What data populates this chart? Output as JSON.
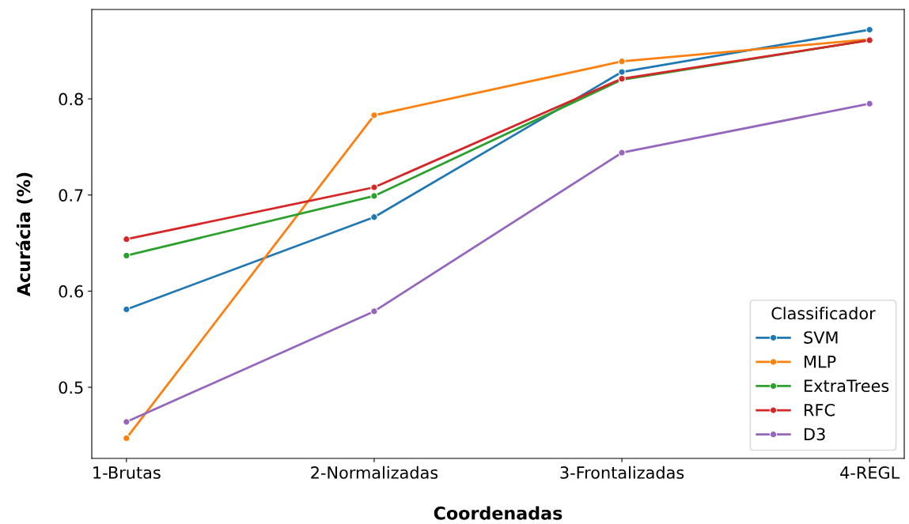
{
  "chart_data": {
    "type": "line",
    "xlabel": "Coordenadas",
    "ylabel": "Acurácia (%)",
    "legend_title": "Classificador",
    "categories": [
      "1-Brutas",
      "2-Normalizadas",
      "3-Frontalizadas",
      "4-REGL"
    ],
    "series": [
      {
        "name": "SVM",
        "color": "#1f77b4",
        "values": [
          0.581,
          0.677,
          0.828,
          0.872
        ]
      },
      {
        "name": "MLP",
        "color": "#ff7f0e",
        "values": [
          0.447,
          0.783,
          0.839,
          0.862
        ]
      },
      {
        "name": "ExtraTrees",
        "color": "#2ca02c",
        "values": [
          0.637,
          0.699,
          0.82,
          0.861
        ]
      },
      {
        "name": "RFC",
        "color": "#d62728",
        "values": [
          0.654,
          0.708,
          0.821,
          0.861
        ]
      },
      {
        "name": "D3",
        "color": "#9467bd",
        "values": [
          0.464,
          0.579,
          0.744,
          0.795
        ]
      }
    ],
    "ylim": [
      0.426,
      0.893
    ],
    "yticks": [
      0.5,
      0.6,
      0.7,
      0.8
    ],
    "grid": false,
    "legend": "bottom right",
    "marker": "circle",
    "line_style": "solid"
  }
}
